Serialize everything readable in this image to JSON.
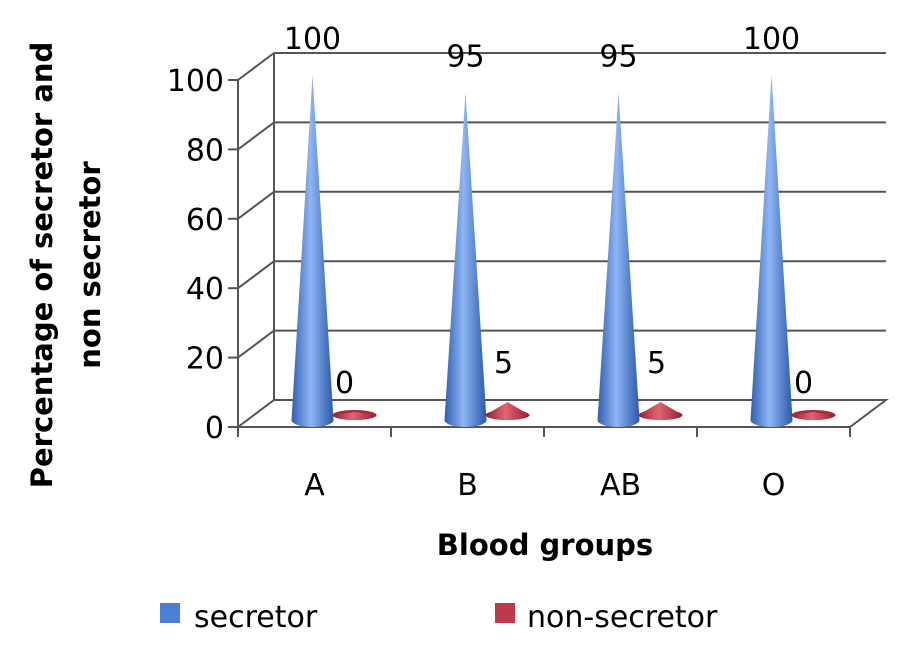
{
  "chart_data": {
    "type": "bar",
    "subtype": "3d-cone",
    "categories": [
      "A",
      "B",
      "AB",
      "O"
    ],
    "series": [
      {
        "name": "secretor",
        "values": [
          100,
          95,
          95,
          100
        ],
        "color": "#4a7fd4"
      },
      {
        "name": "non-secretor",
        "values": [
          0,
          5,
          5,
          0
        ],
        "color": "#c0394b"
      }
    ],
    "data_labels": {
      "secretor": [
        "100",
        "95",
        "95",
        "100"
      ],
      "non-secretor": [
        "0",
        "5",
        "5",
        "0"
      ]
    },
    "title": "",
    "xlabel": "Blood groups",
    "ylabel_lines": [
      "Percentage of secretor and",
      "non secretor"
    ],
    "ylim": [
      0,
      100
    ],
    "yticks": [
      "0",
      "20",
      "40",
      "60",
      "80",
      "100"
    ],
    "grid": true,
    "legend_position": "bottom"
  }
}
